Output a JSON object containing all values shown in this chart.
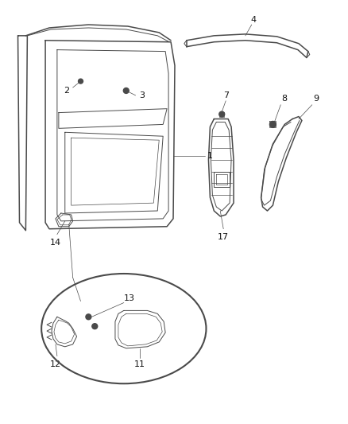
{
  "bg_color": "#ffffff",
  "line_color": "#4a4a4a",
  "lw_main": 1.1,
  "lw_thin": 0.7,
  "lw_hair": 0.5,
  "fig_w": 4.38,
  "fig_h": 5.33,
  "dpi": 100
}
